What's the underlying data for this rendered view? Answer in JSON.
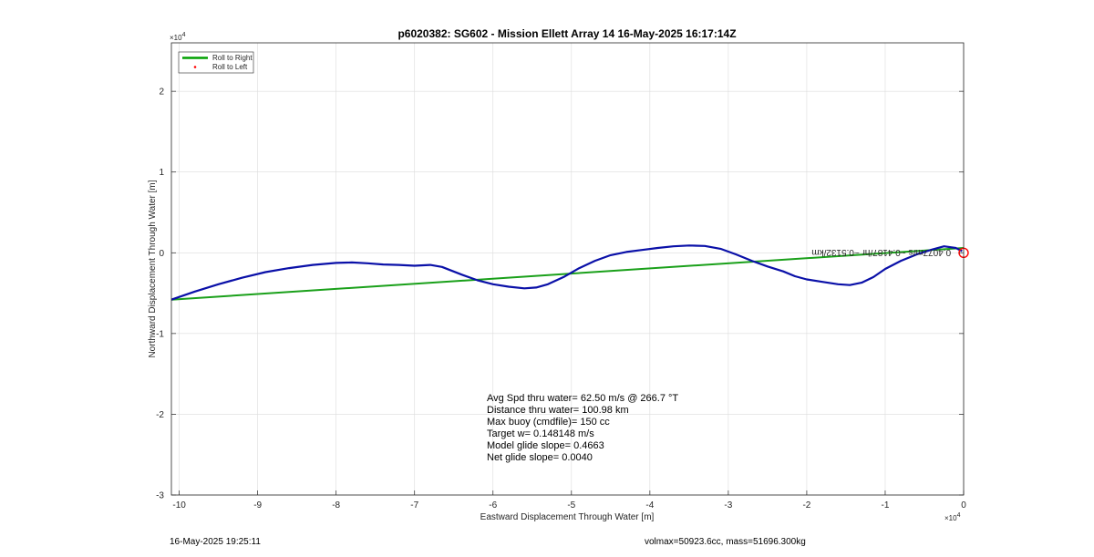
{
  "chart_data": {
    "type": "line",
    "title": "p6020382: SG602 - Mission Ellett Array 14 16-May-2025 16:17:14Z",
    "xlabel": "Eastward Displacement Through Water [m]",
    "ylabel": "Northward Displacement Through Water [m]",
    "x_exponent": "×10^4",
    "y_exponent": "×10^4",
    "xlim": [
      -101000,
      0
    ],
    "ylim": [
      -30000,
      26000
    ],
    "xticks": [
      -100000,
      -90000,
      -80000,
      -70000,
      -60000,
      -50000,
      -40000,
      -30000,
      -20000,
      -10000,
      0
    ],
    "xtick_labels": [
      "-10",
      "-9",
      "-8",
      "-7",
      "-6",
      "-5",
      "-4",
      "-3",
      "-2",
      "-1",
      "0"
    ],
    "yticks": [
      -30000,
      -20000,
      -10000,
      0,
      10000,
      20000
    ],
    "ytick_labels": [
      "-3",
      "-2",
      "-1",
      "0",
      "1",
      "2"
    ],
    "grid": true,
    "legend": {
      "placement": "top-left",
      "entries": [
        {
          "label": "Roll to Right",
          "color": "#00a000",
          "marker": "line"
        },
        {
          "label": "Roll to Left",
          "color": "#ff0000",
          "marker": "dot"
        }
      ]
    },
    "series": [
      {
        "name": "Roll to Right",
        "color": "#1aa01a",
        "style": "line",
        "x": [
          -101000,
          0
        ],
        "y": [
          -5800,
          600
        ]
      },
      {
        "color": "#0a10a8",
        "style": "line",
        "x": [
          -101000,
          -98000,
          -95000,
          -92000,
          -89000,
          -86000,
          -83000,
          -80000,
          -78000,
          -76000,
          -74000,
          -72000,
          -70000,
          -68000,
          -66500,
          -64000,
          -62000,
          -60000,
          -58000,
          -56000,
          -54500,
          -53000,
          -51000,
          -49000,
          -47000,
          -45000,
          -43000,
          -41000,
          -39000,
          -37000,
          -35000,
          -33000,
          -31000,
          -29000,
          -27000,
          -25000,
          -23000,
          -21500,
          -20000,
          -18000,
          -16000,
          -14500,
          -13000,
          -11500,
          -10000,
          -8000,
          -6000,
          -4000,
          -2500,
          -1000,
          -200
        ],
        "y": [
          -5800,
          -4800,
          -3900,
          -3100,
          -2400,
          -1900,
          -1500,
          -1250,
          -1200,
          -1300,
          -1450,
          -1500,
          -1600,
          -1500,
          -1750,
          -2700,
          -3400,
          -3900,
          -4200,
          -4400,
          -4300,
          -3900,
          -3000,
          -1900,
          -1000,
          -300,
          100,
          350,
          600,
          800,
          900,
          850,
          500,
          -200,
          -1000,
          -1700,
          -2300,
          -2900,
          -3300,
          -3600,
          -3900,
          -4000,
          -3700,
          -3000,
          -2000,
          -1000,
          -200,
          400,
          800,
          600,
          200
        ]
      }
    ],
    "end_marker": {
      "x": 0,
      "y": 0,
      "color": "#ff0000"
    },
    "annotation_reversed": "0.4077m/s ~0.4187/hr ~0.5132/km",
    "stats": [
      "Avg Spd thru water= 62.50 m/s @ 266.7 °T",
      "Distance thru water= 100.98 km",
      "Max buoy (cmdfile)= 150 cc",
      "Target w= 0.148148 m/s",
      "Model glide slope= 0.4663",
      "Net glide slope= 0.0040"
    ]
  },
  "footer": {
    "timestamp": "16-May-2025 19:25:11",
    "volmass": "volmax=50923.6cc, mass=51696.300kg"
  }
}
